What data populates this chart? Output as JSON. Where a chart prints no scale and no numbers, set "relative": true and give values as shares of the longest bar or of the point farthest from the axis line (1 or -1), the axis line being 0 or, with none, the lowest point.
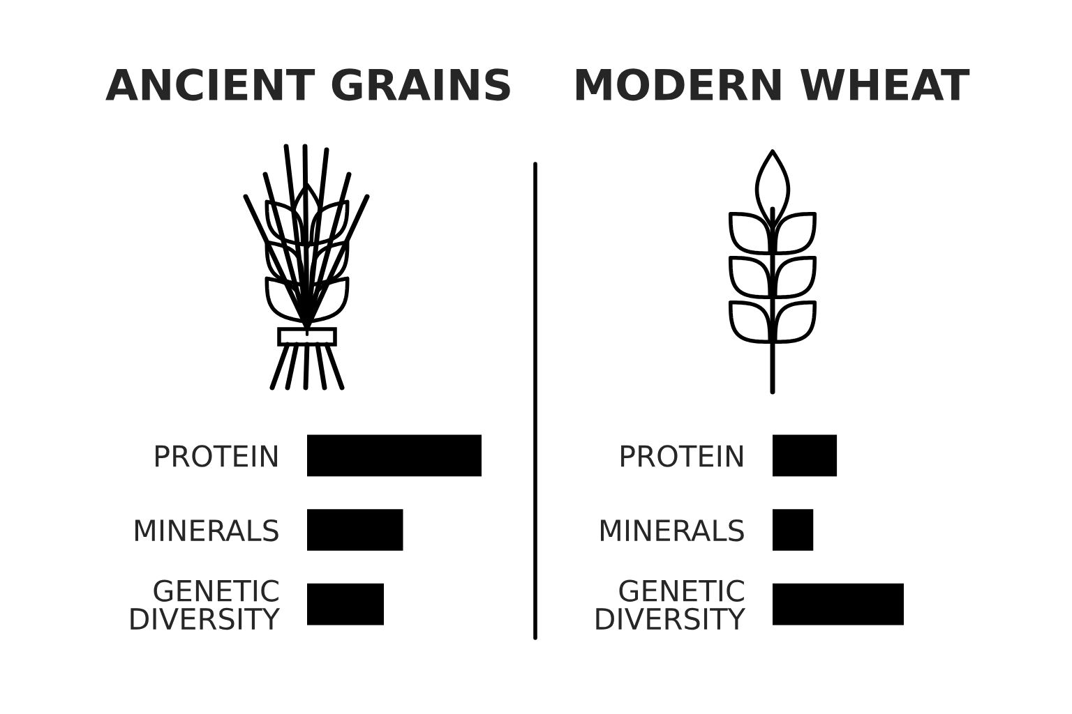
{
  "chart_data": [
    {
      "type": "bar",
      "orientation": "horizontal",
      "relative": true,
      "title": "ANCIENT GRAINS",
      "categories": [
        "PROTEIN",
        "MINERALS",
        "GENETIC\nDIVERSITY"
      ],
      "values": [
        1,
        0.55,
        0.44
      ],
      "color": "#000000"
    },
    {
      "type": "bar",
      "orientation": "horizontal",
      "relative": true,
      "title": "MODERN WHEAT",
      "categories": [
        "PROTEIN",
        "MINERALS",
        "GENETIC\nDIVERSITY"
      ],
      "values": [
        0.49,
        0.31,
        1
      ],
      "color": "#000000"
    }
  ]
}
